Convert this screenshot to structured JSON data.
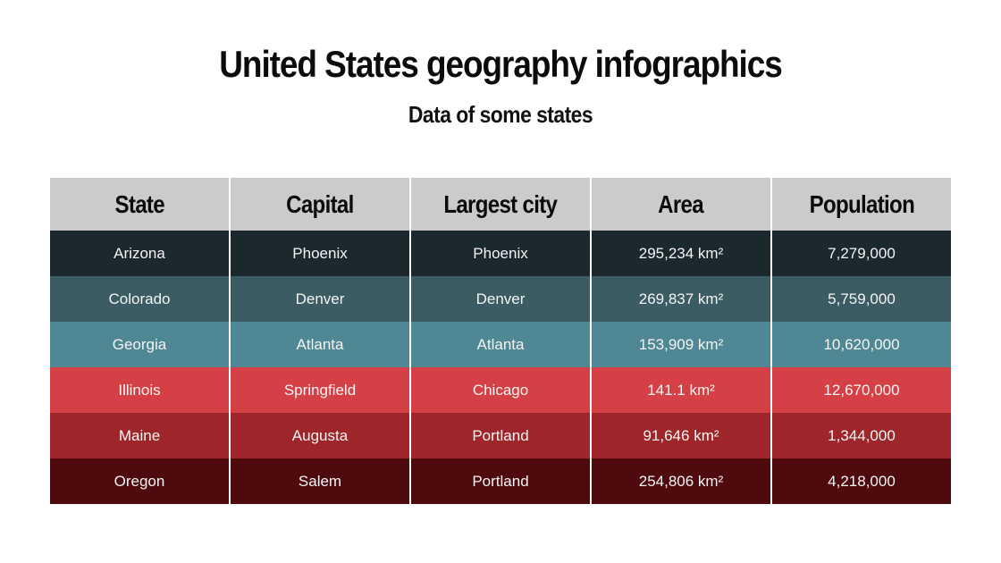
{
  "title": "United States geography infographics",
  "subtitle": "Data of some states",
  "table": {
    "headers": [
      "State",
      "Capital",
      "Largest city",
      "Area",
      "Population"
    ],
    "header_color": "#cbcbcb",
    "rows": [
      {
        "color": "#1b282e",
        "cells": [
          "Arizona",
          "Phoenix",
          "Phoenix",
          "295,234 km²",
          "7,279,000"
        ]
      },
      {
        "color": "#3b5c63",
        "cells": [
          "Colorado",
          "Denver",
          "Denver",
          "269,837 km²",
          "5,759,000"
        ]
      },
      {
        "color": "#508794",
        "cells": [
          "Georgia",
          "Atlanta",
          "Atlanta",
          "153,909 km²",
          "10,620,000"
        ]
      },
      {
        "color": "#d54046",
        "cells": [
          "Illinois",
          "Springfield",
          "Chicago",
          "141.1 km²",
          "12,670,000"
        ]
      },
      {
        "color": "#9e262b",
        "cells": [
          "Maine",
          "Augusta",
          "Portland",
          "91,646 km²",
          "1,344,000"
        ]
      },
      {
        "color": "#4e0a0d",
        "cells": [
          "Oregon",
          "Salem",
          "Portland",
          "254,806 km²",
          "4,218,000"
        ]
      }
    ]
  }
}
